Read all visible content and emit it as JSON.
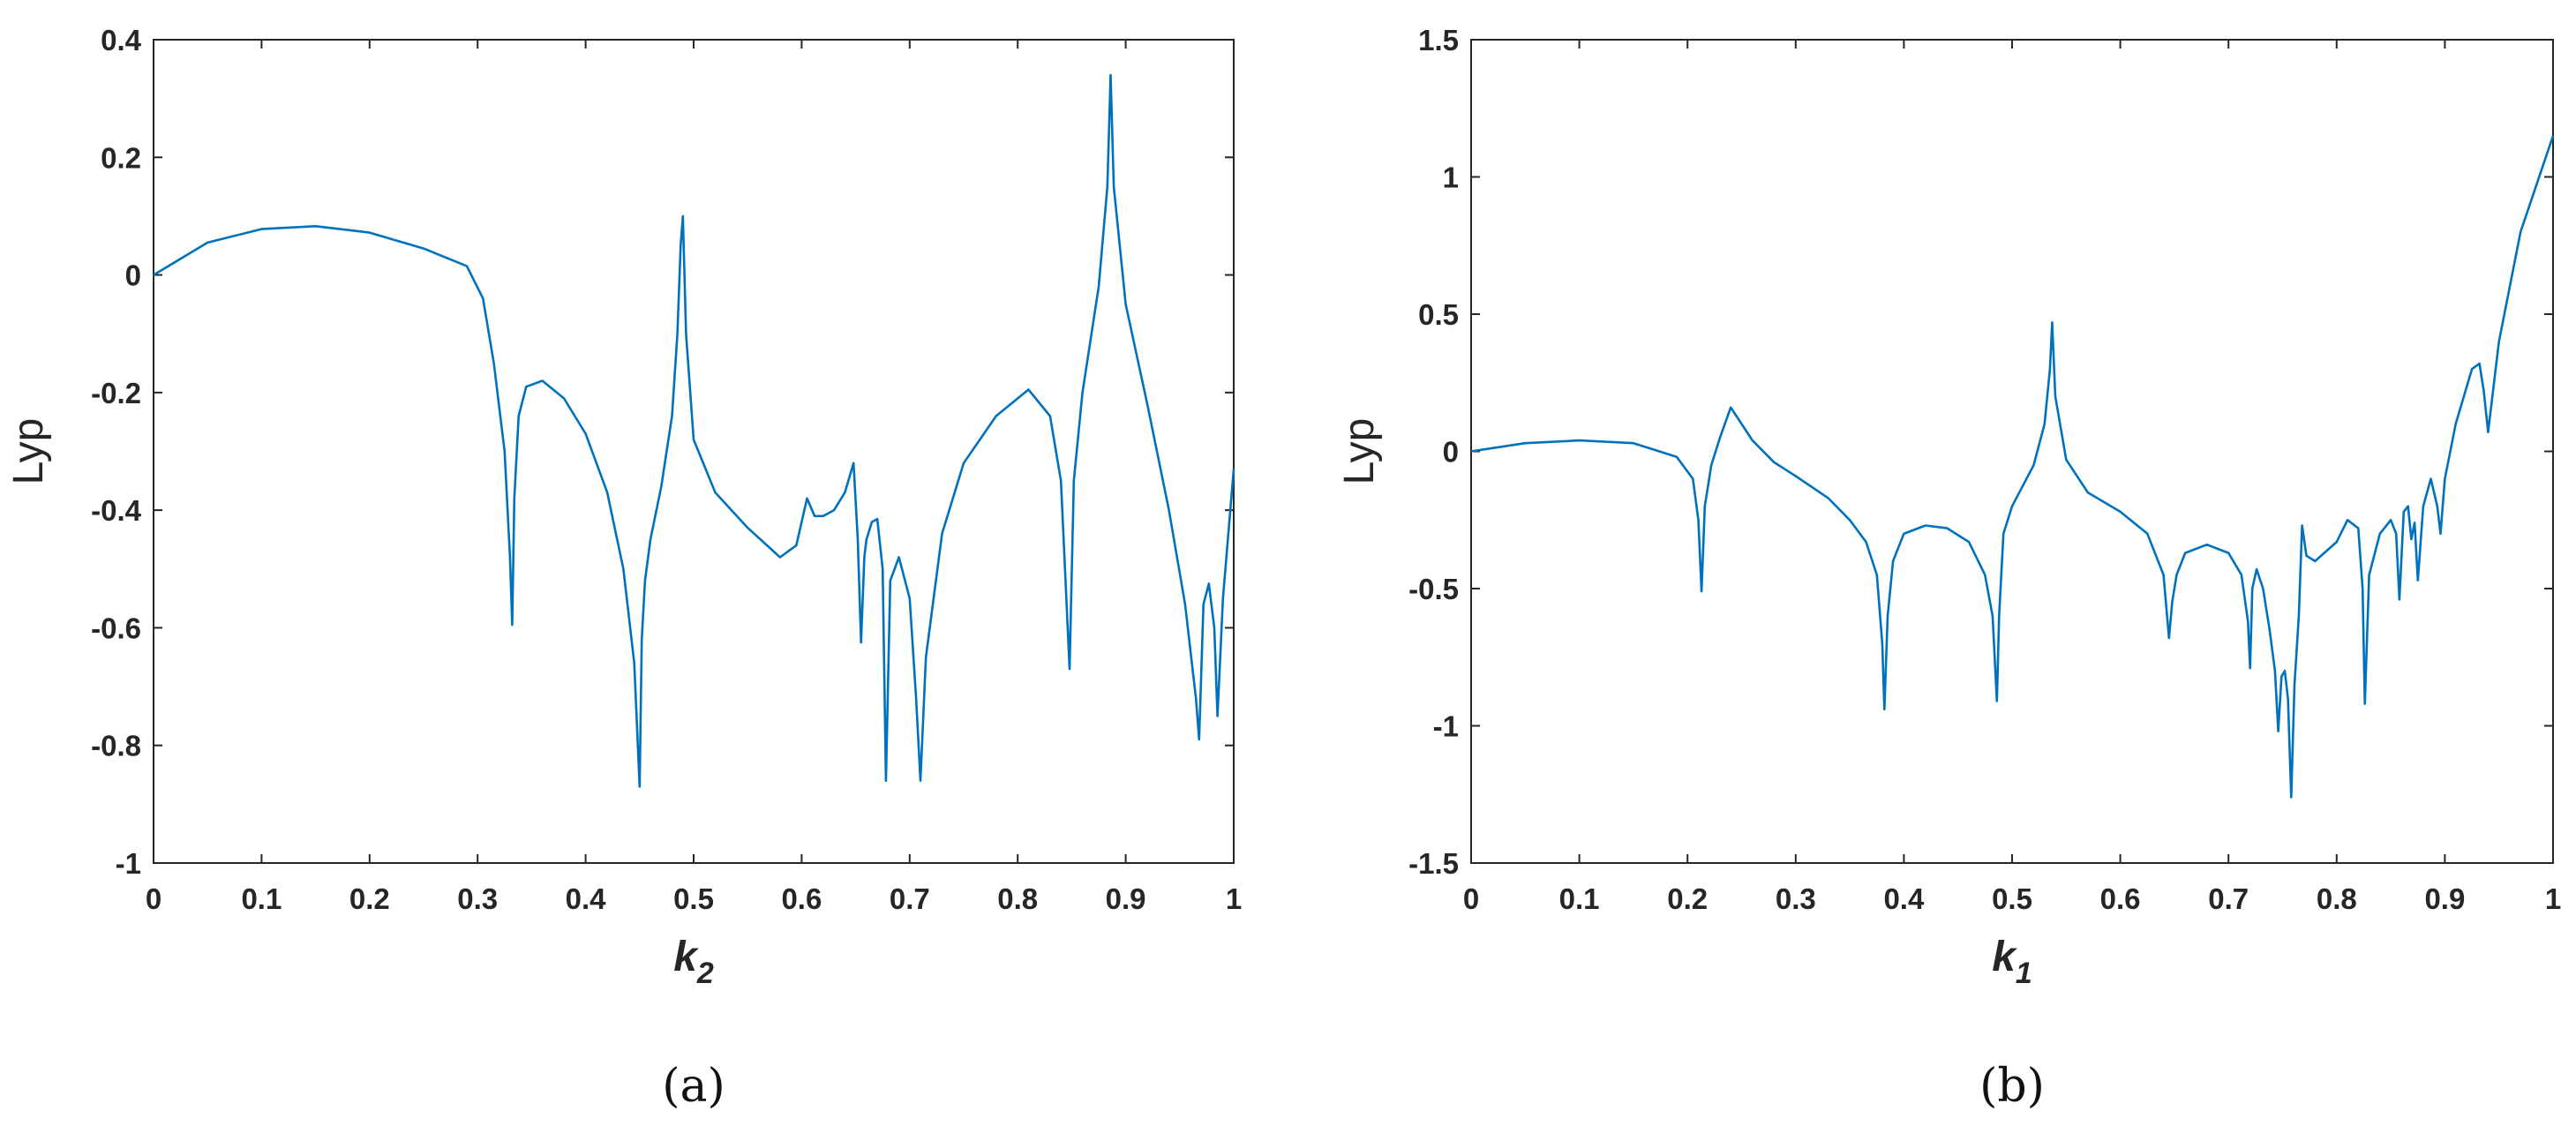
{
  "chart_data": [
    {
      "type": "line",
      "xlabel": "k",
      "xlabel_subscript": "2",
      "ylabel": "Lyp",
      "caption": "(a)",
      "xlim": [
        0,
        1
      ],
      "ylim": [
        -1,
        0.4
      ],
      "xticks": [
        0,
        0.1,
        0.2,
        0.3,
        0.4,
        0.5,
        0.6,
        0.7,
        0.8,
        0.9,
        1
      ],
      "yticks": [
        -1,
        -0.8,
        -0.6,
        -0.4,
        -0.2,
        0,
        0.2,
        0.4
      ],
      "xtick_labels": [
        "0",
        "0.1",
        "0.2",
        "0.3",
        "0.4",
        "0.5",
        "0.6",
        "0.7",
        "0.8",
        "0.9",
        "1"
      ],
      "ytick_labels": [
        "-1",
        "-0.8",
        "-0.6",
        "-0.4",
        "-0.2",
        "0",
        "0.2",
        "0.4"
      ],
      "line_color": "#0072BD",
      "grid": false,
      "series": [
        {
          "x": [
            0,
            0.05,
            0.1,
            0.15,
            0.2,
            0.25,
            0.29,
            0.305,
            0.315,
            0.325,
            0.33,
            0.332,
            0.334,
            0.338,
            0.345,
            0.36,
            0.38,
            0.4,
            0.42,
            0.435,
            0.445,
            0.45,
            0.452,
            0.455,
            0.46,
            0.47,
            0.48,
            0.485,
            0.488,
            0.49,
            0.493,
            0.5,
            0.52,
            0.55,
            0.58,
            0.595,
            0.605,
            0.612,
            0.62,
            0.63,
            0.64,
            0.648,
            0.652,
            0.655,
            0.658,
            0.66,
            0.665,
            0.67,
            0.675,
            0.678,
            0.682,
            0.69,
            0.7,
            0.706,
            0.71,
            0.715,
            0.73,
            0.75,
            0.78,
            0.81,
            0.83,
            0.84,
            0.848,
            0.852,
            0.86,
            0.875,
            0.883,
            0.886,
            0.889,
            0.9,
            0.92,
            0.94,
            0.955,
            0.965,
            0.968,
            0.972,
            0.977,
            0.982,
            0.985,
            0.99,
            1.0
          ],
          "y": [
            0,
            0.055,
            0.078,
            0.083,
            0.072,
            0.045,
            0.015,
            -0.04,
            -0.15,
            -0.3,
            -0.48,
            -0.595,
            -0.38,
            -0.24,
            -0.19,
            -0.18,
            -0.21,
            -0.27,
            -0.37,
            -0.5,
            -0.66,
            -0.87,
            -0.62,
            -0.52,
            -0.45,
            -0.36,
            -0.24,
            -0.1,
            0.05,
            0.1,
            -0.1,
            -0.28,
            -0.37,
            -0.43,
            -0.48,
            -0.46,
            -0.38,
            -0.41,
            -0.41,
            -0.4,
            -0.37,
            -0.32,
            -0.45,
            -0.625,
            -0.48,
            -0.45,
            -0.42,
            -0.415,
            -0.5,
            -0.86,
            -0.52,
            -0.48,
            -0.55,
            -0.72,
            -0.86,
            -0.65,
            -0.44,
            -0.32,
            -0.24,
            -0.195,
            -0.24,
            -0.35,
            -0.67,
            -0.35,
            -0.2,
            -0.02,
            0.15,
            0.34,
            0.15,
            -0.05,
            -0.22,
            -0.4,
            -0.56,
            -0.72,
            -0.79,
            -0.56,
            -0.525,
            -0.6,
            -0.75,
            -0.55,
            -0.33
          ]
        }
      ]
    },
    {
      "type": "line",
      "xlabel": "k",
      "xlabel_subscript": "1",
      "ylabel": "Lyp",
      "caption": "(b)",
      "xlim": [
        0,
        1
      ],
      "ylim": [
        -1.5,
        1.5
      ],
      "xticks": [
        0,
        0.1,
        0.2,
        0.3,
        0.4,
        0.5,
        0.6,
        0.7,
        0.8,
        0.9,
        1
      ],
      "yticks": [
        -1.5,
        -1,
        -0.5,
        0,
        0.5,
        1,
        1.5
      ],
      "xtick_labels": [
        "0",
        "0.1",
        "0.2",
        "0.3",
        "0.4",
        "0.5",
        "0.6",
        "0.7",
        "0.8",
        "0.9",
        "1"
      ],
      "ytick_labels": [
        "-1.5",
        "-1",
        "-0.5",
        "0",
        "0.5",
        "1",
        "1.5"
      ],
      "line_color": "#0072BD",
      "grid": false,
      "series": [
        {
          "x": [
            0,
            0.05,
            0.1,
            0.15,
            0.19,
            0.205,
            0.21,
            0.213,
            0.216,
            0.222,
            0.23,
            0.24,
            0.25,
            0.26,
            0.28,
            0.3,
            0.33,
            0.35,
            0.365,
            0.375,
            0.38,
            0.382,
            0.385,
            0.39,
            0.4,
            0.42,
            0.44,
            0.46,
            0.475,
            0.482,
            0.486,
            0.488,
            0.492,
            0.5,
            0.52,
            0.53,
            0.535,
            0.537,
            0.54,
            0.55,
            0.57,
            0.6,
            0.625,
            0.64,
            0.645,
            0.648,
            0.652,
            0.66,
            0.68,
            0.7,
            0.712,
            0.718,
            0.72,
            0.722,
            0.726,
            0.732,
            0.738,
            0.743,
            0.746,
            0.749,
            0.752,
            0.755,
            0.758,
            0.761,
            0.765,
            0.768,
            0.772,
            0.78,
            0.8,
            0.81,
            0.82,
            0.824,
            0.826,
            0.83,
            0.84,
            0.85,
            0.855,
            0.858,
            0.862,
            0.866,
            0.869,
            0.872,
            0.875,
            0.88,
            0.887,
            0.893,
            0.896,
            0.9,
            0.91,
            0.925,
            0.932,
            0.936,
            0.94,
            0.95,
            0.97,
            1.0
          ],
          "y": [
            0,
            0.03,
            0.04,
            0.03,
            -0.02,
            -0.1,
            -0.25,
            -0.51,
            -0.2,
            -0.05,
            0.05,
            0.16,
            0.1,
            0.04,
            -0.04,
            -0.09,
            -0.17,
            -0.25,
            -0.33,
            -0.45,
            -0.7,
            -0.94,
            -0.6,
            -0.4,
            -0.3,
            -0.27,
            -0.28,
            -0.33,
            -0.45,
            -0.6,
            -0.91,
            -0.6,
            -0.3,
            -0.2,
            -0.05,
            0.1,
            0.3,
            0.47,
            0.2,
            -0.03,
            -0.15,
            -0.22,
            -0.3,
            -0.45,
            -0.68,
            -0.55,
            -0.45,
            -0.37,
            -0.34,
            -0.37,
            -0.45,
            -0.62,
            -0.79,
            -0.5,
            -0.43,
            -0.5,
            -0.65,
            -0.8,
            -1.02,
            -0.82,
            -0.8,
            -0.9,
            -1.26,
            -0.85,
            -0.6,
            -0.27,
            -0.38,
            -0.4,
            -0.33,
            -0.25,
            -0.28,
            -0.5,
            -0.92,
            -0.45,
            -0.3,
            -0.25,
            -0.3,
            -0.54,
            -0.22,
            -0.2,
            -0.32,
            -0.26,
            -0.47,
            -0.2,
            -0.1,
            -0.2,
            -0.3,
            -0.1,
            0.1,
            0.3,
            0.32,
            0.22,
            0.07,
            0.4,
            0.8,
            1.15
          ]
        }
      ]
    }
  ]
}
